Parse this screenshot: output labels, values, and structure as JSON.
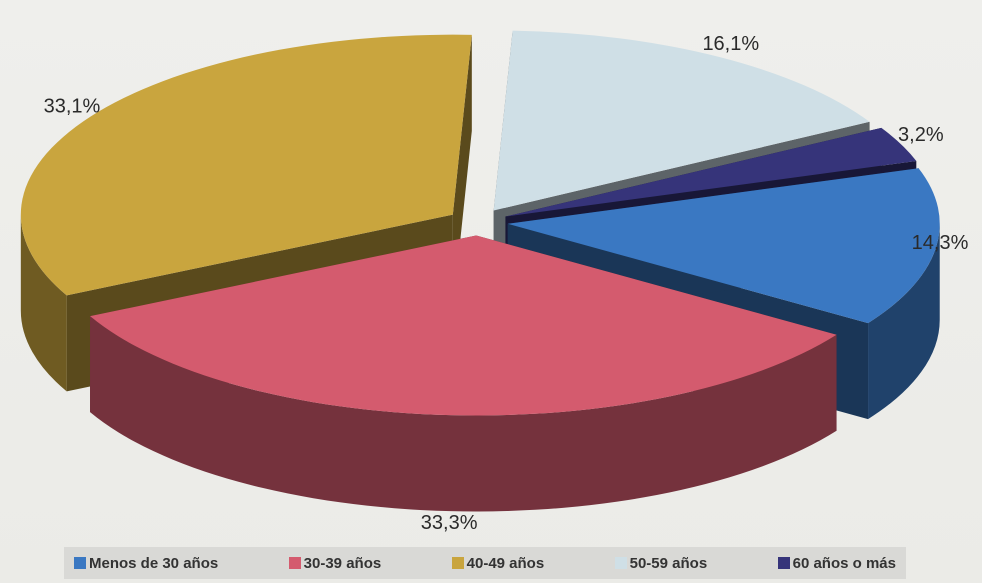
{
  "chart_data": {
    "type": "pie",
    "title": "",
    "labels": [
      "Menos de 30 años",
      "30-39 años",
      "40-49 años",
      "50-59 años",
      "60 años o más"
    ],
    "values": [
      14.3,
      33.3,
      33.1,
      16.1,
      3.2
    ],
    "value_labels": [
      "14,3%",
      "33,3%",
      "33,1%",
      "16,1%",
      "3,2%"
    ],
    "colors": [
      "#3a78c2",
      "#d45b6e",
      "#c9a53e",
      "#cfdfe6",
      "#36347a"
    ],
    "legend_position": "bottom",
    "style": "3d-exploded"
  },
  "legend": {
    "items": [
      {
        "label": "Menos de 30 años",
        "color": "#3a78c2"
      },
      {
        "label": "30-39 años",
        "color": "#d45b6e"
      },
      {
        "label": "40-49 años",
        "color": "#c9a53e"
      },
      {
        "label": "50-59 años",
        "color": "#cfdfe6"
      },
      {
        "label": "60 años o más",
        "color": "#36347a"
      }
    ]
  }
}
